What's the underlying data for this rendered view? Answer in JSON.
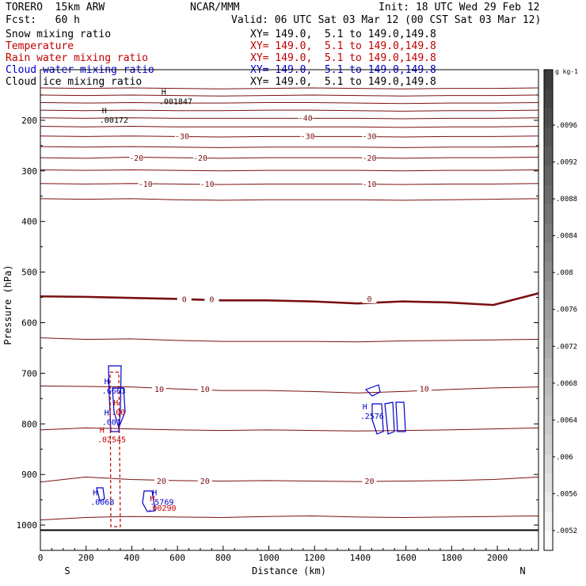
{
  "header": {
    "model": "TORERO  15km ARW",
    "center": "NCAR/MMM",
    "init": "Init: 18 UTC Wed 29 Feb 12",
    "fcst": "Fcst:   60 h",
    "valid": "Valid: 06 UTC Sat 03 Mar 12 (00 CST Sat 03 Mar 12)"
  },
  "fields": [
    {
      "name": "Snow mixing ratio",
      "xy": "XY= 149.0,  5.1 to 149.0,149.8",
      "color": "#000000"
    },
    {
      "name": "Temperature",
      "xy": "XY= 149.0,  5.1 to 149.0,149.8",
      "color": "#c00000"
    },
    {
      "name": "Rain water mixing ratio",
      "xy": "XY= 149.0,  5.1 to 149.0,149.8",
      "color": "#c00000"
    },
    {
      "name": "Cloud water mixing ratio",
      "xy": "XY= 149.0,  5.1 to 149.0,149.8",
      "color": "#0000c8"
    },
    {
      "name": "Cloud ice mixing ratio",
      "xy": "XY= 149.0,  5.1 to 149.0,149.8",
      "color": "#000000"
    }
  ],
  "chart_data": {
    "type": "line",
    "xlabel": "Distance (km)",
    "ylabel": "Pressure (hPa)",
    "xlim": [
      0,
      2180
    ],
    "ylim": [
      100,
      1050
    ],
    "x_ticks": [
      0,
      200,
      400,
      600,
      800,
      1000,
      1200,
      1400,
      1600,
      1800,
      2000
    ],
    "y_ticks": [
      200,
      300,
      400,
      500,
      600,
      700,
      800,
      900,
      1000
    ],
    "left_end_label": "S",
    "right_end_label": "N",
    "temperature_contours": [
      {
        "level": -60,
        "p": [
          136,
          137,
          136,
          137,
          138,
          137,
          136,
          137,
          138,
          137,
          137,
          136
        ]
      },
      {
        "level": -55,
        "p": [
          150,
          151,
          150,
          151,
          152,
          151,
          150,
          151,
          152,
          151,
          151,
          150
        ]
      },
      {
        "level": -50,
        "p": [
          165,
          166,
          165,
          166,
          166,
          165,
          165,
          166,
          167,
          166,
          166,
          165
        ]
      },
      {
        "level": -45,
        "p": [
          180,
          181,
          180,
          181,
          181,
          180,
          180,
          181,
          182,
          181,
          181,
          180
        ]
      },
      {
        "level": -40,
        "p": [
          195,
          196,
          195,
          196,
          196,
          196,
          196,
          196,
          197,
          196,
          196,
          195
        ]
      },
      {
        "level": -35,
        "p": [
          212,
          213,
          212,
          213,
          213,
          213,
          213,
          213,
          214,
          213,
          213,
          212
        ]
      },
      {
        "level": -30,
        "p": [
          231,
          232,
          231,
          232,
          233,
          232,
          232,
          232,
          233,
          232,
          232,
          231
        ]
      },
      {
        "level": -25,
        "p": [
          252,
          253,
          252,
          253,
          254,
          253,
          253,
          253,
          254,
          253,
          253,
          252
        ]
      },
      {
        "level": -20,
        "p": [
          274,
          275,
          273,
          274,
          275,
          274,
          274,
          274,
          275,
          274,
          274,
          273
        ]
      },
      {
        "level": -15,
        "p": [
          298,
          299,
          298,
          299,
          300,
          299,
          299,
          299,
          300,
          299,
          299,
          298
        ]
      },
      {
        "level": -10,
        "p": [
          325,
          326,
          325,
          326,
          327,
          326,
          326,
          326,
          327,
          326,
          326,
          325
        ]
      },
      {
        "level": -5,
        "p": [
          355,
          356,
          355,
          357,
          358,
          357,
          357,
          357,
          358,
          357,
          356,
          355
        ]
      },
      {
        "level": 0,
        "p": [
          548,
          549,
          551,
          553,
          556,
          556,
          558,
          562,
          558,
          560,
          565,
          542
        ],
        "bold": true
      },
      {
        "level": 5,
        "p": [
          630,
          633,
          632,
          635,
          637,
          637,
          637,
          638,
          636,
          635,
          634,
          633
        ]
      },
      {
        "level": 10,
        "p": [
          725,
          726,
          727,
          731,
          734,
          734,
          736,
          739,
          736,
          732,
          729,
          727
        ]
      },
      {
        "level": 15,
        "p": [
          812,
          808,
          810,
          812,
          813,
          812,
          813,
          814,
          813,
          812,
          810,
          808
        ]
      },
      {
        "level": 20,
        "p": [
          915,
          905,
          910,
          912,
          913,
          912,
          913,
          914,
          913,
          912,
          910,
          905
        ]
      },
      {
        "level": 25,
        "p": [
          990,
          985,
          983,
          984,
          985,
          983,
          982,
          984,
          985,
          984,
          983,
          982
        ]
      }
    ],
    "temperature_labels": [
      {
        "text": "-40",
        "x": 1160,
        "p": 195
      },
      {
        "text": "-30",
        "x": 620,
        "p": 231
      },
      {
        "text": "-30",
        "x": 1170,
        "p": 231
      },
      {
        "text": "-30",
        "x": 1440,
        "p": 231
      },
      {
        "text": "-20",
        "x": 420,
        "p": 274
      },
      {
        "text": "-20",
        "x": 700,
        "p": 274
      },
      {
        "text": "-20",
        "x": 1440,
        "p": 274
      },
      {
        "text": "-10",
        "x": 460,
        "p": 325
      },
      {
        "text": "-10",
        "x": 730,
        "p": 325
      },
      {
        "text": "-10",
        "x": 1440,
        "p": 325
      },
      {
        "text": "0",
        "x": 630,
        "p": 553
      },
      {
        "text": "0",
        "x": 750,
        "p": 553
      },
      {
        "text": "0",
        "x": 1440,
        "p": 552
      },
      {
        "text": "10",
        "x": 520,
        "p": 731
      },
      {
        "text": "10",
        "x": 720,
        "p": 731
      },
      {
        "text": "10",
        "x": 1680,
        "p": 730
      },
      {
        "text": "20",
        "x": 530,
        "p": 912
      },
      {
        "text": "20",
        "x": 720,
        "p": 912
      },
      {
        "text": "20",
        "x": 1440,
        "p": 912
      }
    ],
    "maxima": [
      {
        "letter": "H",
        "value": ".001847",
        "x": 540,
        "p": 168,
        "color": "#000000"
      },
      {
        "letter": "H",
        "value": ".00172",
        "x": 280,
        "p": 205,
        "color": "#000000"
      },
      {
        "letter": "H",
        "value": ".6663",
        "x": 290,
        "p": 740,
        "color": "#0000c8"
      },
      {
        "letter": "H",
        "value": ".00",
        "x": 330,
        "p": 782,
        "color": "#c00000"
      },
      {
        "letter": "H",
        "value": ".001",
        "x": 290,
        "p": 802,
        "color": "#0000c8"
      },
      {
        "letter": "H",
        "value": ".02545",
        "x": 270,
        "p": 836,
        "color": "#c00000"
      },
      {
        "letter": "H",
        "value": ".2576",
        "x": 1420,
        "p": 790,
        "color": "#0000c8"
      },
      {
        "letter": "H",
        "value": ".0068",
        "x": 240,
        "p": 960,
        "color": "#0000c8"
      },
      {
        "letter": "H",
        "value": ".5769",
        "x": 500,
        "p": 960,
        "color": "#0000c8"
      },
      {
        "letter": "H",
        "value": ".00290",
        "x": 490,
        "p": 972,
        "color": "#c00000"
      }
    ],
    "colorbar": {
      "unit": "g kg-1",
      "ticks": [
        ".0096",
        ".0092",
        ".0088",
        ".0084",
        ".008",
        ".0076",
        ".0072",
        ".0068",
        ".0064",
        ".006",
        ".0056",
        ".0052"
      ]
    }
  }
}
